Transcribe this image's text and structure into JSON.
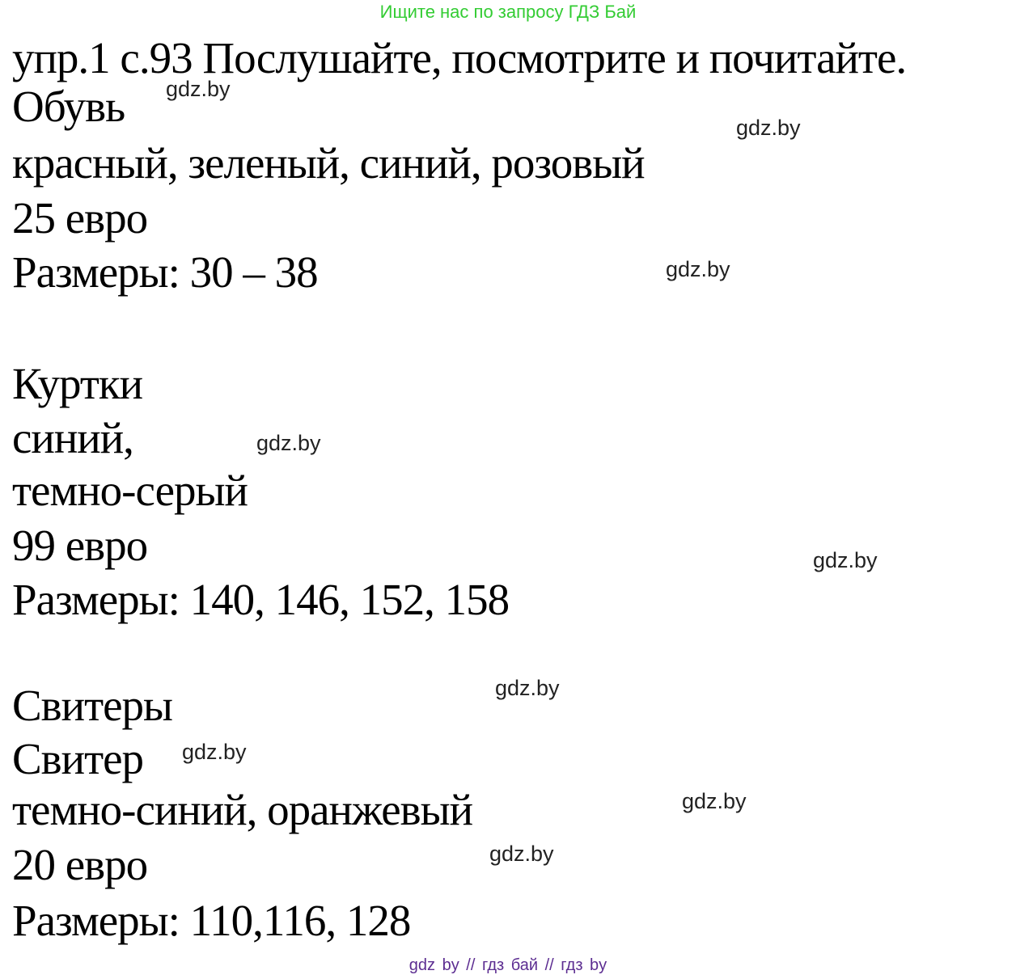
{
  "header": {
    "text": "Ищите нас по запросу ГДЗ Бай",
    "color": "#33cc33"
  },
  "watermark": {
    "text": "gdz.by"
  },
  "content": {
    "title": "упр.1 с.93 Послушайте, посмотрите и почитайте.",
    "shoes": {
      "header": "Обувь",
      "colors": "красный, зеленый, синий, розовый",
      "price": "25 евро",
      "sizes": "Размеры: 30 – 38"
    },
    "jackets": {
      "header": "Куртки",
      "color1": "синий,",
      "color2": "темно-серый",
      "price": "99 евро",
      "sizes": "Размеры: 140, 146, 152, 158"
    },
    "sweaters": {
      "header": "Свитеры",
      "item": "Свитер",
      "colors": "темно-синий, оранжевый",
      "price": "20 евро",
      "sizes": "Размеры: 110,116, 128"
    }
  },
  "footer": {
    "text": "gdz by // гдз бай // гдз by",
    "color": "#5c2d91"
  }
}
